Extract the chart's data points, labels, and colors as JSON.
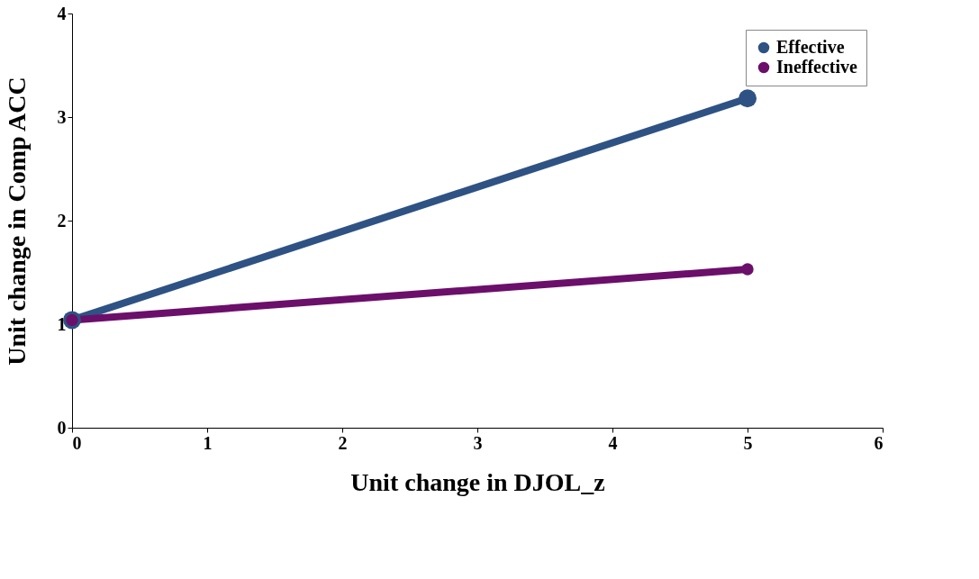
{
  "chart_data": {
    "type": "line",
    "xlabel": "Unit change in DJOL_z",
    "ylabel": "Unit change in Comp ACC",
    "x": [
      0,
      5
    ],
    "series": [
      {
        "name": "Effective",
        "color": "#2e5283",
        "values": [
          1.04,
          3.18
        ]
      },
      {
        "name": "Ineffective",
        "color": "#6b0f6b",
        "values": [
          1.04,
          1.53
        ]
      }
    ],
    "xlim": [
      0,
      6
    ],
    "xticks": [
      0,
      1,
      2,
      3,
      4,
      5,
      6
    ],
    "ylim": [
      0,
      4
    ],
    "yticks": [
      0,
      1,
      2,
      3,
      4
    ],
    "grid": false,
    "legend": "top right",
    "marker": "circle",
    "line_style": "solid"
  }
}
